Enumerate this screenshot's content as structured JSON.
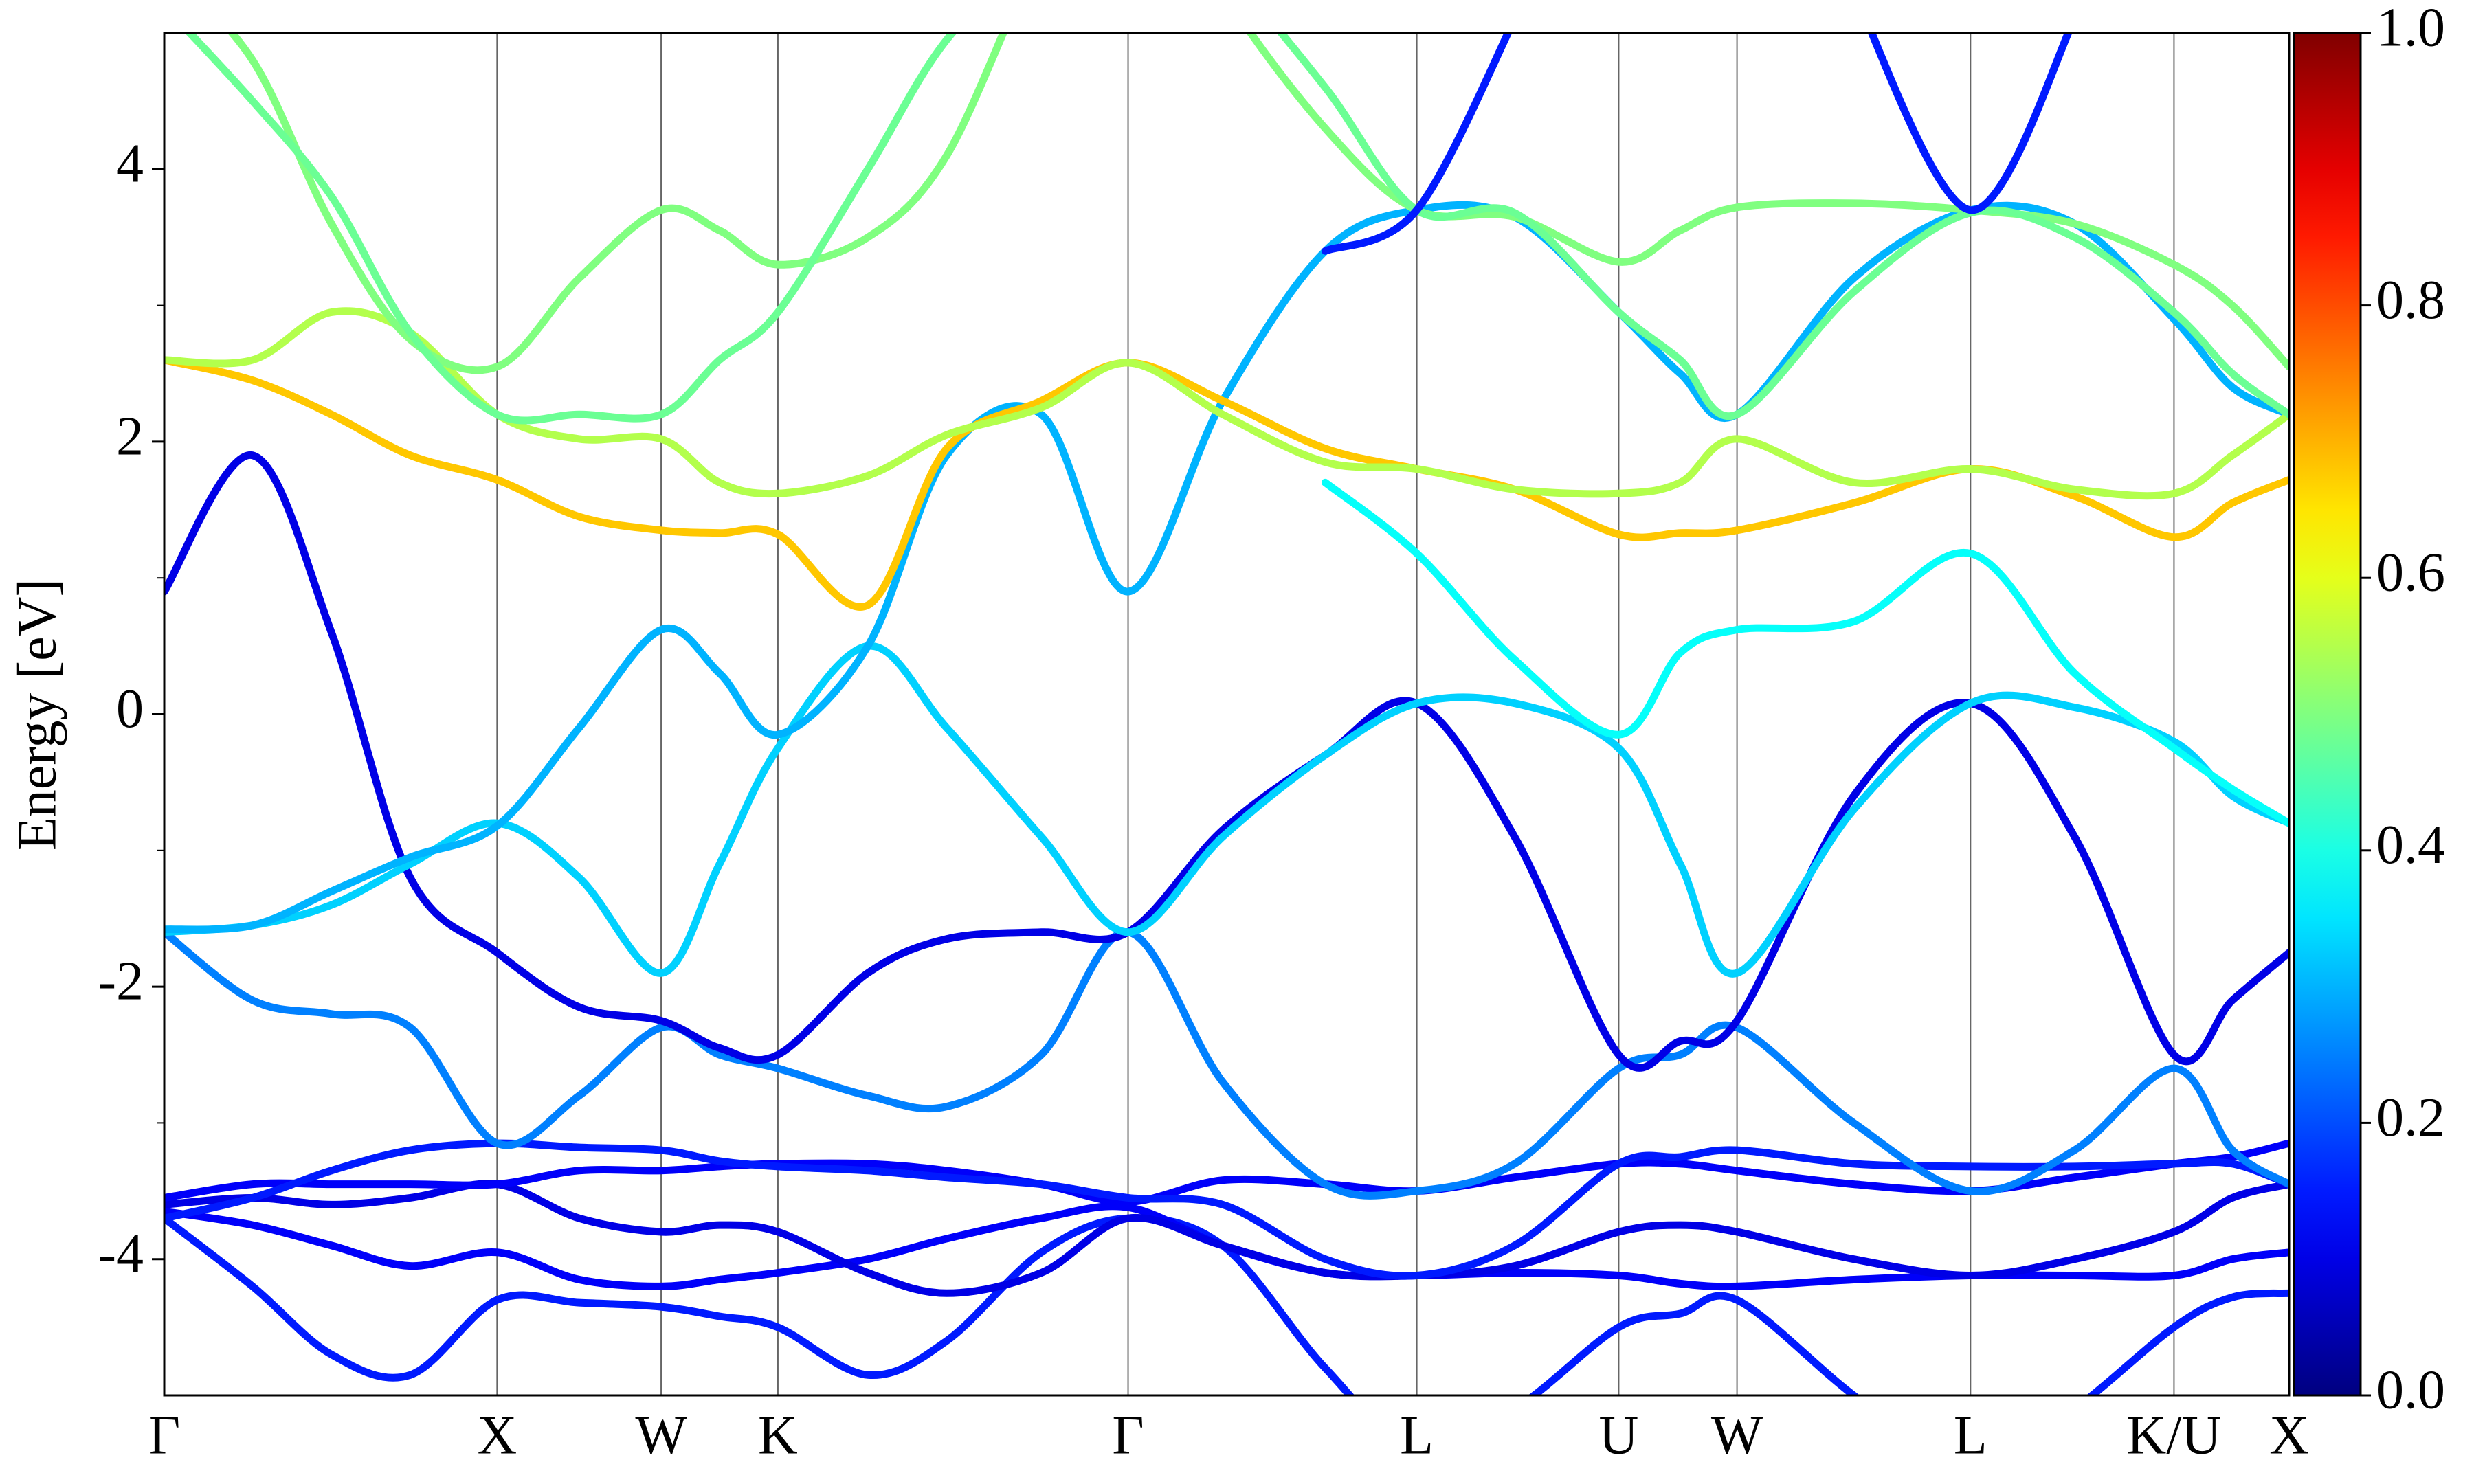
{
  "chart_data": {
    "type": "line",
    "ylabel": "Energy [eV]",
    "colormap": "jet",
    "line_width": 11,
    "grid": true,
    "xlim": [
      0,
      13.47
    ],
    "xticks": [
      {
        "value": 0,
        "label": "Γ"
      },
      {
        "value": 2.11,
        "label": "X"
      },
      {
        "value": 3.15,
        "label": "W"
      },
      {
        "value": 3.89,
        "label": "K"
      },
      {
        "value": 6.11,
        "label": "Γ"
      },
      {
        "value": 7.94,
        "label": "L"
      },
      {
        "value": 9.22,
        "label": "U"
      },
      {
        "value": 9.97,
        "label": "W"
      },
      {
        "value": 11.45,
        "label": "L"
      },
      {
        "value": 12.74,
        "label": "K/U"
      },
      {
        "value": 13.47,
        "label": "X"
      }
    ],
    "ylim": [
      -5,
      5
    ],
    "yticks": [
      -4,
      -2,
      0,
      2,
      4
    ],
    "yminorticks": [
      -3,
      -1,
      1,
      3
    ],
    "colorbar": {
      "lim": [
        0,
        1
      ],
      "ticks": [
        {
          "value": 0,
          "label": "0.0"
        },
        {
          "value": 0.2,
          "label": "0.2"
        },
        {
          "value": 0.4,
          "label": "0.4"
        },
        {
          "value": 0.6,
          "label": "0.6"
        },
        {
          "value": 0.8,
          "label": "0.8"
        },
        {
          "value": 1,
          "label": "1.0"
        }
      ]
    },
    "x": [
      0,
      0.56,
      1.06,
      1.56,
      2.11,
      2.63,
      3.15,
      3.52,
      3.89,
      4.46,
      4.96,
      5.56,
      6.11,
      6.71,
      7.36,
      7.94,
      8.56,
      9.22,
      9.61,
      9.97,
      10.71,
      11.45,
      12.11,
      12.74,
      13.11,
      13.47
    ],
    "series": [
      {
        "weight": 0.15,
        "values": [
          -3.7,
          -4.2,
          -4.7,
          -4.85,
          -4.3,
          -4.32,
          -4.35,
          -4.42,
          -4.5,
          -4.85,
          -4.6,
          -3.95,
          -3.7,
          -3.9,
          -4.8,
          -5.4,
          -5.1,
          -4.5,
          -4.4,
          -4.3,
          -5.0,
          -5.6,
          -5.1,
          -4.5,
          -4.28,
          -4.25
        ]
      },
      {
        "weight": 0.12,
        "values": [
          -3.65,
          -3.75,
          -3.9,
          -4.05,
          -3.95,
          -4.15,
          -4.2,
          -4.15,
          -4.1,
          -4.0,
          -3.85,
          -3.7,
          -3.62,
          -3.9,
          -4.1,
          -4.12,
          -4.1,
          -4.12,
          -4.18,
          -4.2,
          -4.15,
          -4.12,
          -4.12,
          -4.12,
          -4.0,
          -3.95
        ]
      },
      {
        "weight": 0.1,
        "values": [
          -3.6,
          -3.55,
          -3.6,
          -3.55,
          -3.45,
          -3.7,
          -3.8,
          -3.75,
          -3.8,
          -4.1,
          -4.25,
          -4.1,
          -3.7,
          -3.9,
          -4.1,
          -4.12,
          -4.05,
          -3.8,
          -3.75,
          -3.8,
          -4.0,
          -4.12,
          -4.0,
          -3.8,
          -3.55,
          -3.45
        ]
      },
      {
        "weight": 0.12,
        "values": [
          -3.55,
          -3.45,
          -3.45,
          -3.45,
          -3.45,
          -3.35,
          -3.35,
          -3.32,
          -3.3,
          -3.3,
          -3.35,
          -3.45,
          -3.58,
          -3.42,
          -3.45,
          -3.5,
          -3.4,
          -3.3,
          -3.3,
          -3.35,
          -3.45,
          -3.5,
          -3.4,
          -3.3,
          -3.25,
          -3.15
        ]
      },
      {
        "weight": 0.15,
        "values": [
          -3.7,
          -3.55,
          -3.35,
          -3.2,
          -3.15,
          -3.18,
          -3.2,
          -3.28,
          -3.32,
          -3.35,
          -3.4,
          -3.45,
          -3.55,
          -3.6,
          -4.0,
          -4.12,
          -3.9,
          -3.3,
          -3.25,
          -3.2,
          -3.3,
          -3.32,
          -3.32,
          -3.3,
          -3.3,
          -3.45
        ]
      },
      {
        "weight": 0.25,
        "values": [
          -1.6,
          -2.1,
          -2.2,
          -2.3,
          -3.15,
          -2.8,
          -2.3,
          -2.5,
          -2.6,
          -2.8,
          -2.88,
          -2.5,
          -1.6,
          -2.7,
          -3.45,
          -3.5,
          -3.3,
          -2.6,
          -2.5,
          -2.3,
          -3.0,
          -3.5,
          -3.2,
          -2.6,
          -3.2,
          -3.45
        ]
      },
      {
        "weight": 0.1,
        "values": [
          0.9,
          1.9,
          0.6,
          -1.2,
          -1.75,
          -2.15,
          -2.25,
          -2.45,
          -2.5,
          -1.9,
          -1.65,
          -1.6,
          -1.6,
          -0.85,
          -0.3,
          0.08,
          -0.9,
          -2.5,
          -2.4,
          -2.25,
          -0.6,
          0.08,
          -0.9,
          -2.5,
          -2.1,
          -1.75
        ]
      },
      {
        "weight": 0.33,
        "values": [
          -1.6,
          -1.55,
          -1.4,
          -1.1,
          -0.8,
          -1.2,
          -1.9,
          -1.1,
          -0.25,
          0.5,
          -0.1,
          -0.9,
          -1.6,
          -0.9,
          -0.3,
          0.08,
          0.08,
          -0.25,
          -1.1,
          -1.9,
          -0.7,
          0.08,
          0.05,
          -0.2,
          -0.6,
          -0.8
        ]
      },
      {
        "weight": 0.3,
        "values": [
          -1.58,
          -1.55,
          -1.3,
          -1.05,
          -0.82,
          -0.1,
          0.62,
          0.3,
          -0.15,
          0.5,
          1.9,
          2.2,
          0.9,
          2.3,
          3.4,
          3.7,
          3.65,
          2.95,
          2.5,
          2.2,
          3.2,
          3.7,
          3.6,
          2.9,
          2.4,
          2.2
        ]
      },
      {
        "weight": 0.68,
        "values": [
          2.6,
          2.45,
          2.2,
          1.9,
          1.72,
          1.45,
          1.35,
          1.33,
          1.32,
          0.8,
          1.95,
          2.3,
          2.58,
          2.3,
          1.95,
          1.8,
          1.65,
          1.32,
          1.33,
          1.35,
          1.55,
          1.8,
          1.6,
          1.3,
          1.55,
          1.72
        ]
      },
      {
        "weight": 0.55,
        "values": [
          2.6,
          2.6,
          2.95,
          2.8,
          2.2,
          2.02,
          2.02,
          1.7,
          1.62,
          1.75,
          2.05,
          2.25,
          2.58,
          2.2,
          1.85,
          1.8,
          1.65,
          1.62,
          1.7,
          2.02,
          1.7,
          1.8,
          1.65,
          1.62,
          1.9,
          2.2
        ]
      },
      {
        "weight": 0.5,
        "values": [
          5.5,
          4.8,
          3.6,
          2.75,
          2.55,
          3.2,
          3.7,
          3.55,
          3.3,
          3.5,
          4.1,
          5.6,
          6.5,
          5.3,
          4.3,
          3.7,
          3.65,
          3.32,
          3.55,
          3.72,
          3.75,
          3.7,
          3.6,
          3.3,
          3.0,
          2.55
        ]
      },
      {
        "weight": 0.48,
        "values": [
          5.2,
          4.5,
          3.8,
          2.8,
          2.2,
          2.2,
          2.2,
          2.6,
          2.95,
          4.0,
          4.95,
          5.6,
          6.2,
          5.5,
          4.6,
          3.7,
          3.68,
          2.95,
          2.6,
          2.2,
          3.1,
          3.68,
          3.5,
          2.95,
          2.5,
          2.2
        ]
      },
      {
        "weight": 0.38,
        "values": [
          null,
          null,
          null,
          null,
          null,
          null,
          null,
          null,
          null,
          null,
          null,
          null,
          null,
          null,
          1.7,
          1.18,
          0.4,
          -0.15,
          0.45,
          0.62,
          0.68,
          1.18,
          0.3,
          -0.25,
          -0.55,
          -0.8
        ]
      },
      {
        "weight": 0.15,
        "values": [
          null,
          null,
          null,
          null,
          null,
          null,
          null,
          null,
          null,
          null,
          null,
          null,
          null,
          null,
          3.4,
          3.7,
          5.1,
          null,
          null,
          null,
          5.3,
          3.7,
          5.1,
          null,
          null,
          null
        ]
      }
    ]
  }
}
